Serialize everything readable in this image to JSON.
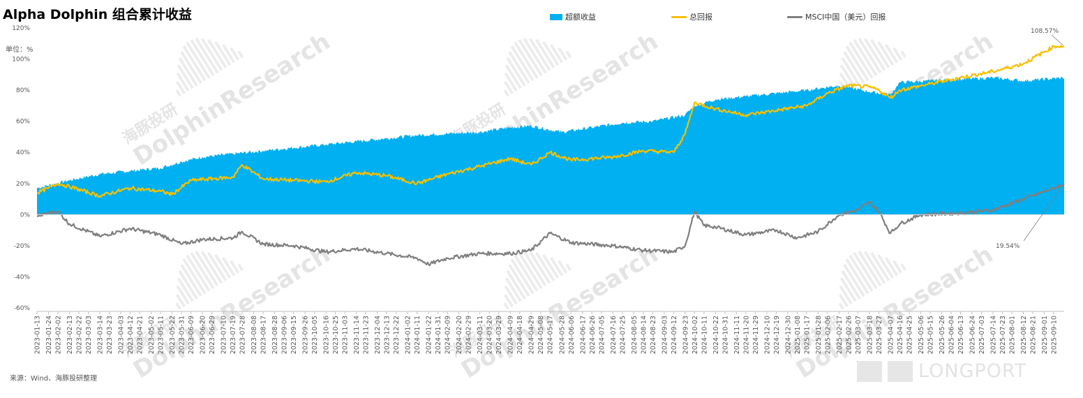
{
  "title": "Alpha Dolphin 组合累计收益",
  "unit_label": "单位：%",
  "source": "来源：Wind、海豚投研整理",
  "watermark": {
    "cn": "海豚投研",
    "en": "DolphinResearch",
    "brand": "LONGPORT"
  },
  "chart_data": {
    "type": "area",
    "title": "Alpha Dolphin 组合累计收益",
    "xlabel": "",
    "ylabel": "单位：%",
    "ylim": [
      -60,
      120
    ],
    "yticks": [
      -60,
      -40,
      -20,
      0,
      20,
      40,
      60,
      80,
      100,
      120
    ],
    "yticklabels": [
      "-60%",
      "-40%",
      "-20%",
      "0%",
      "20%",
      "40%",
      "60%",
      "80%",
      "100%",
      "120%"
    ],
    "legend_position": "top",
    "grid": false,
    "x_range": [
      "2023-01-13",
      "2025-09-20"
    ],
    "x_ticks": [
      "2023-01-13",
      "2023-01-24",
      "2023-02-02",
      "2023-02-13",
      "2023-02-22",
      "2023-03-03",
      "2023-03-14",
      "2023-03-23",
      "2023-04-03",
      "2023-04-12",
      "2023-04-21",
      "2023-05-02",
      "2023-05-11",
      "2023-05-22",
      "2023-05-31",
      "2023-06-09",
      "2023-06-20",
      "2023-06-29",
      "2023-07-10",
      "2023-07-19",
      "2023-07-28",
      "2023-08-08",
      "2023-08-17",
      "2023-08-28",
      "2023-09-06",
      "2023-09-15",
      "2023-09-26",
      "2023-10-05",
      "2023-10-16",
      "2023-10-25",
      "2023-11-03",
      "2023-11-14",
      "2023-11-23",
      "2023-12-04",
      "2023-12-13",
      "2023-12-22",
      "2024-01-02",
      "2024-01-11",
      "2024-01-22",
      "2024-01-31",
      "2024-02-09",
      "2024-02-20",
      "2024-02-29",
      "2024-03-11",
      "2024-03-20",
      "2024-03-29",
      "2024-04-09",
      "2024-04-18",
      "2024-04-29",
      "2024-05-08",
      "2024-05-17",
      "2024-05-28",
      "2024-06-06",
      "2024-06-17",
      "2024-06-26",
      "2024-07-05",
      "2024-07-16",
      "2024-07-25",
      "2024-08-05",
      "2024-08-14",
      "2024-08-23",
      "2024-09-03",
      "2024-09-12",
      "2024-09-23",
      "2024-10-02",
      "2024-10-11",
      "2024-10-22",
      "2024-10-31",
      "2024-11-11",
      "2024-11-20",
      "2024-11-29",
      "2024-12-10",
      "2024-12-19",
      "2024-12-30",
      "2025-01-08",
      "2025-01-17",
      "2025-01-28",
      "2025-02-06",
      "2025-02-17",
      "2025-02-26",
      "2025-03-07",
      "2025-03-18",
      "2025-03-27",
      "2025-04-07",
      "2025-04-16",
      "2025-04-25",
      "2025-05-06",
      "2025-05-15",
      "2025-05-26",
      "2025-06-04",
      "2025-06-13",
      "2025-06-24",
      "2025-07-03",
      "2025-07-14",
      "2025-07-23",
      "2025-08-01",
      "2025-08-12",
      "2025-08-21",
      "2025-09-01",
      "2025-09-10"
    ],
    "series": [
      {
        "name": "超额收益",
        "type": "area",
        "color": "#00B0F0",
        "x": [
          "2023-01-13",
          "2023-02-13",
          "2023-03-14",
          "2023-04-12",
          "2023-05-11",
          "2023-05-31",
          "2023-06-20",
          "2023-07-19",
          "2023-08-17",
          "2023-09-15",
          "2023-10-16",
          "2023-11-14",
          "2023-12-13",
          "2024-01-11",
          "2024-02-09",
          "2024-03-11",
          "2024-04-09",
          "2024-04-29",
          "2024-05-28",
          "2024-06-26",
          "2024-07-25",
          "2024-08-23",
          "2024-09-23",
          "2024-10-02",
          "2024-10-22",
          "2024-11-20",
          "2024-12-19",
          "2025-01-17",
          "2025-02-17",
          "2025-03-18",
          "2025-04-07",
          "2025-04-16",
          "2025-05-15",
          "2025-06-13",
          "2025-07-14",
          "2025-08-12",
          "2025-09-20"
        ],
        "values": [
          17,
          22,
          26,
          28,
          30,
          34,
          37,
          39,
          41,
          43,
          45,
          47,
          49,
          51,
          52,
          53,
          56,
          57,
          53,
          56,
          59,
          60,
          64,
          70,
          74,
          76,
          78,
          80,
          83,
          79,
          77,
          85,
          86,
          87,
          88,
          86,
          88
        ]
      },
      {
        "name": "总回报",
        "type": "line",
        "color": "#F5C000",
        "x": [
          "2023-01-13",
          "2023-01-24",
          "2023-02-02",
          "2023-02-13",
          "2023-03-14",
          "2023-04-12",
          "2023-05-11",
          "2023-05-22",
          "2023-06-09",
          "2023-07-19",
          "2023-07-28",
          "2023-08-17",
          "2023-09-15",
          "2023-10-16",
          "2023-11-14",
          "2023-12-13",
          "2024-01-11",
          "2024-02-09",
          "2024-03-11",
          "2024-04-09",
          "2024-04-29",
          "2024-05-17",
          "2024-06-06",
          "2024-07-16",
          "2024-08-14",
          "2024-09-12",
          "2024-09-23",
          "2024-10-02",
          "2024-10-22",
          "2024-11-20",
          "2024-12-19",
          "2025-01-17",
          "2025-02-06",
          "2025-02-26",
          "2025-03-18",
          "2025-03-27",
          "2025-04-07",
          "2025-04-16",
          "2025-05-15",
          "2025-06-13",
          "2025-07-14",
          "2025-08-12",
          "2025-09-10",
          "2025-09-20"
        ],
        "values": [
          14,
          17,
          20,
          18,
          12,
          17,
          15,
          13,
          22,
          24,
          32,
          23,
          22,
          21,
          27,
          25,
          20,
          26,
          31,
          36,
          32,
          40,
          35,
          37,
          41,
          40,
          52,
          72,
          68,
          64,
          67,
          70,
          78,
          83,
          82,
          80,
          75,
          80,
          84,
          88,
          92,
          97,
          108,
          108.57
        ]
      },
      {
        "name": "MSCI中国（美元）回报",
        "type": "line",
        "color": "#7F7F7F",
        "x": [
          "2023-01-13",
          "2023-01-24",
          "2023-02-02",
          "2023-02-13",
          "2023-03-14",
          "2023-04-12",
          "2023-05-11",
          "2023-05-31",
          "2023-06-20",
          "2023-07-19",
          "2023-07-28",
          "2023-08-17",
          "2023-09-15",
          "2023-10-16",
          "2023-11-14",
          "2023-12-13",
          "2024-01-11",
          "2024-01-22",
          "2024-02-09",
          "2024-03-11",
          "2024-04-09",
          "2024-04-29",
          "2024-05-17",
          "2024-06-06",
          "2024-07-16",
          "2024-08-14",
          "2024-09-12",
          "2024-09-23",
          "2024-10-02",
          "2024-10-11",
          "2024-10-22",
          "2024-11-20",
          "2024-12-19",
          "2025-01-08",
          "2025-01-28",
          "2025-02-17",
          "2025-03-07",
          "2025-03-18",
          "2025-03-27",
          "2025-04-07",
          "2025-04-16",
          "2025-05-06",
          "2025-06-13",
          "2025-07-14",
          "2025-08-12",
          "2025-09-10",
          "2025-09-20"
        ],
        "values": [
          -1,
          1,
          2,
          -6,
          -14,
          -9,
          -13,
          -19,
          -16,
          -15,
          -11,
          -19,
          -20,
          -24,
          -22,
          -25,
          -28,
          -32,
          -28,
          -25,
          -25,
          -23,
          -12,
          -18,
          -20,
          -23,
          -24,
          -20,
          2,
          -7,
          -8,
          -13,
          -10,
          -15,
          -11,
          0,
          3,
          8,
          2,
          -12,
          -6,
          0,
          1,
          3,
          10,
          17,
          19.54
        ]
      }
    ],
    "annotations": [
      {
        "text": "108.57%",
        "series": "总回报",
        "x": "2025-09-20",
        "y": 108.57
      },
      {
        "text": "19.54%",
        "series": "MSCI中国（美元）回报",
        "x": "2025-09-20",
        "y": 19.54
      }
    ]
  }
}
